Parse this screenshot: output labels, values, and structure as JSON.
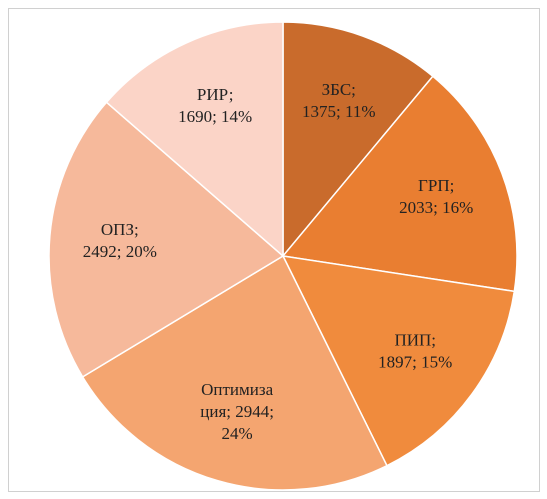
{
  "chart_data": {
    "type": "pie",
    "values": [
      1375,
      2033,
      1897,
      2944,
      2492,
      1690
    ],
    "value_labels": [
      [
        "ЗБС;",
        "1375; 11%"
      ],
      [
        "ГРП;",
        "2033; 16%"
      ],
      [
        "ПИП;",
        "1897; 15%"
      ],
      [
        "Оптимиза",
        "ция; 2944;",
        "24%"
      ],
      [
        "ОПЗ;",
        "2492; 20%"
      ],
      [
        "РИР;",
        "1690; 14%"
      ]
    ],
    "colors": [
      "#c96b2c",
      "#e97e31",
      "#f08b3d",
      "#f4a570",
      "#f6b99b",
      "#fbd4c7"
    ]
  }
}
